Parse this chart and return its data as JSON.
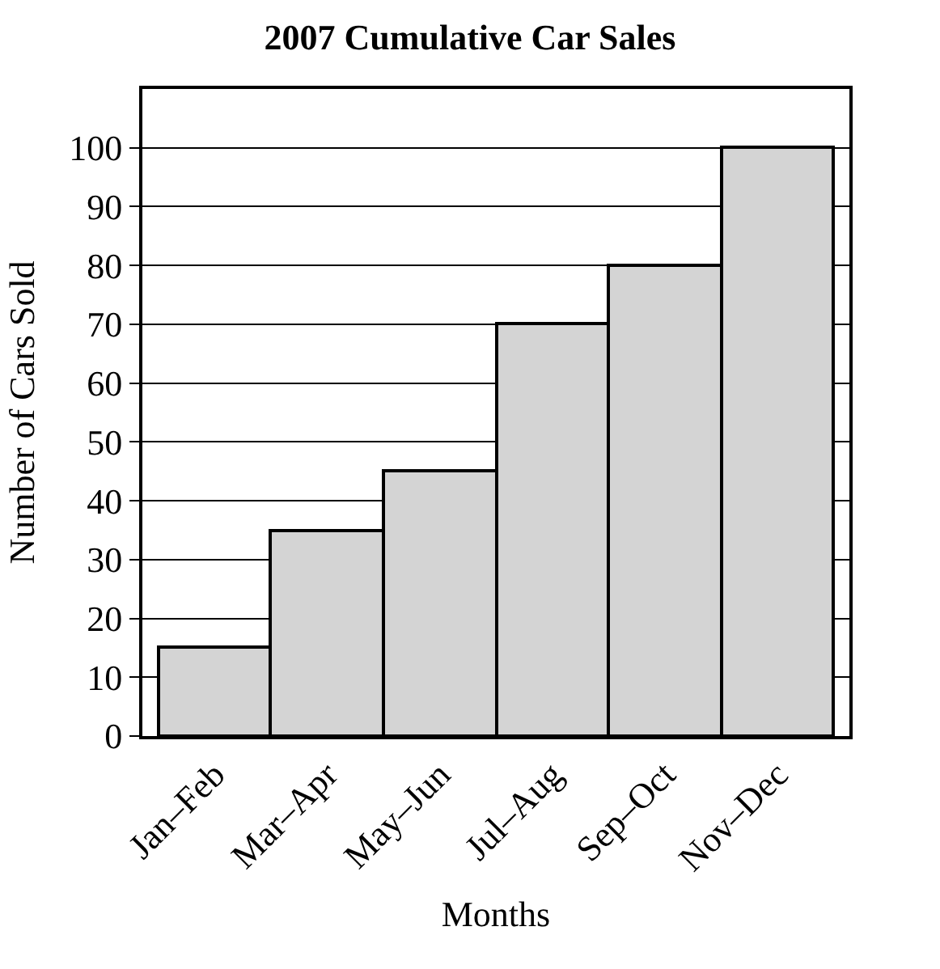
{
  "chart_data": {
    "type": "bar",
    "title": "2007 Cumulative Car Sales",
    "xlabel": "Months",
    "ylabel": "Number of Cars Sold",
    "categories": [
      "Jan–Feb",
      "Mar–Apr",
      "May–Jun",
      "Jul–Aug",
      "Sep–Oct",
      "Nov–Dec"
    ],
    "values": [
      15,
      35,
      45,
      70,
      80,
      100
    ],
    "color": "#d4d4d4",
    "ylim": [
      0,
      110
    ],
    "yticks": [
      0,
      10,
      20,
      30,
      40,
      50,
      60,
      70,
      80,
      90,
      100
    ],
    "grid": "y"
  }
}
